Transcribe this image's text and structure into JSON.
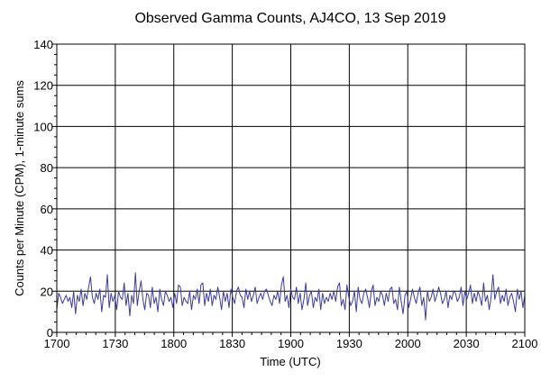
{
  "chart_data": {
    "type": "line",
    "title": "Observed Gamma Counts, AJ4CO, 13 Sep 2019",
    "xlabel": "Time (UTC)",
    "ylabel": "Counts per Minute (CPM), 1-minute sums",
    "xlim": [
      0,
      240
    ],
    "ylim": [
      0,
      140
    ],
    "x_ticks": [
      {
        "minutes": 0,
        "label": "1700"
      },
      {
        "minutes": 30,
        "label": "1730"
      },
      {
        "minutes": 60,
        "label": "1800"
      },
      {
        "minutes": 90,
        "label": "1830"
      },
      {
        "minutes": 120,
        "label": "1900"
      },
      {
        "minutes": 150,
        "label": "1930"
      },
      {
        "minutes": 180,
        "label": "2000"
      },
      {
        "minutes": 210,
        "label": "2030"
      },
      {
        "minutes": 240,
        "label": "2100"
      }
    ],
    "y_ticks": [
      0,
      20,
      40,
      60,
      80,
      100,
      120,
      140
    ],
    "grid": true,
    "line_color": "#3b3b9e",
    "series": [
      {
        "values": [
          11,
          19,
          17,
          14,
          16,
          18,
          15,
          17,
          12,
          20,
          9,
          18,
          15,
          21,
          13,
          19,
          16,
          22,
          27,
          17,
          14,
          19,
          16,
          21,
          10,
          18,
          17,
          28,
          12,
          19,
          15,
          18,
          11,
          20,
          17,
          16,
          24,
          13,
          19,
          8,
          18,
          14,
          29,
          13,
          20,
          25,
          16,
          11,
          19,
          18,
          12,
          22,
          14,
          17,
          10,
          21,
          16,
          13,
          20,
          18,
          15,
          17,
          12,
          19,
          14,
          23,
          22,
          13,
          17,
          15,
          14,
          20,
          11,
          18,
          16,
          21,
          14,
          23,
          24,
          13,
          19,
          15,
          21,
          13,
          18,
          16,
          22,
          17,
          11,
          20,
          15,
          19,
          12,
          21,
          17,
          14,
          20,
          22,
          18,
          17,
          12,
          21,
          16,
          20,
          15,
          18,
          22,
          14,
          17,
          19,
          16,
          20,
          21,
          18,
          15,
          13,
          18,
          16,
          20,
          14,
          23,
          27,
          15,
          18,
          12,
          21,
          17,
          16,
          22,
          14,
          19,
          11,
          16,
          24,
          13,
          18,
          20,
          12,
          17,
          15,
          21,
          11,
          19,
          14,
          17,
          15,
          19,
          16,
          20,
          15,
          22,
          24,
          13,
          16,
          11,
          23,
          17,
          13,
          15,
          20,
          10,
          22,
          16,
          14,
          19,
          21,
          17,
          12,
          20,
          23,
          13,
          17,
          15,
          20,
          18,
          13,
          19,
          15,
          21,
          22,
          14,
          16,
          11,
          22,
          15,
          9,
          18,
          20,
          12,
          16,
          21,
          17,
          14,
          19,
          22,
          13,
          17,
          6,
          20,
          15,
          17,
          21,
          15,
          18,
          22,
          19,
          14,
          16,
          20,
          12,
          18,
          16,
          20,
          19,
          15,
          17,
          22,
          13,
          20,
          16,
          19,
          23,
          14,
          19,
          15,
          20,
          17,
          13,
          24,
          15,
          18,
          11,
          17,
          28,
          16,
          20,
          22,
          14,
          18,
          15,
          21,
          13,
          17,
          19,
          15,
          10,
          21,
          16,
          20,
          12,
          18
        ]
      }
    ]
  }
}
